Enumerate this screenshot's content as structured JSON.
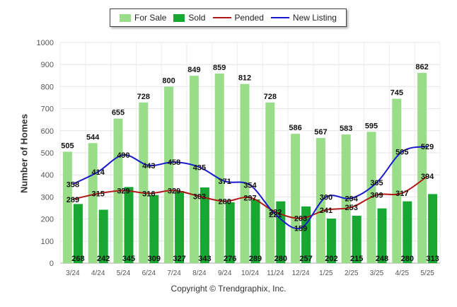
{
  "chart_data": {
    "type": "bar",
    "ylabel": "Number of Homes",
    "ylim": [
      0,
      1000
    ],
    "yticks": [
      "0",
      "100",
      "200",
      "300",
      "400",
      "500",
      "600",
      "700",
      "800",
      "900",
      "1000"
    ],
    "categories": [
      "3/24",
      "4/24",
      "5/24",
      "6/24",
      "7/24",
      "8/24",
      "9/24",
      "10/24",
      "11/24",
      "12/24",
      "1/25",
      "2/25",
      "3/25",
      "4/25",
      "5/25"
    ],
    "series": [
      {
        "name": "For Sale",
        "kind": "bar",
        "color": "#99dd88",
        "values": [
          505,
          544,
          655,
          728,
          800,
          849,
          859,
          812,
          728,
          586,
          567,
          583,
          595,
          745,
          862
        ]
      },
      {
        "name": "Sold",
        "kind": "bar",
        "color": "#18a832",
        "values": [
          268,
          242,
          345,
          309,
          327,
          343,
          276,
          289,
          280,
          257,
          202,
          215,
          248,
          280,
          313
        ]
      },
      {
        "name": "Pended",
        "kind": "line",
        "color": "#b01818",
        "values": [
          289,
          315,
          329,
          316,
          329,
          303,
          280,
          297,
          232,
          203,
          241,
          253,
          309,
          317,
          394
        ]
      },
      {
        "name": "New Listing",
        "kind": "line",
        "color": "#1a1acc",
        "values": [
          358,
          414,
          490,
          443,
          458,
          435,
          371,
          354,
          221,
          159,
          300,
          294,
          365,
          505,
          529
        ]
      }
    ],
    "legend_position": "top",
    "grid": true
  },
  "footer": "Copyright © Trendgraphix, Inc."
}
